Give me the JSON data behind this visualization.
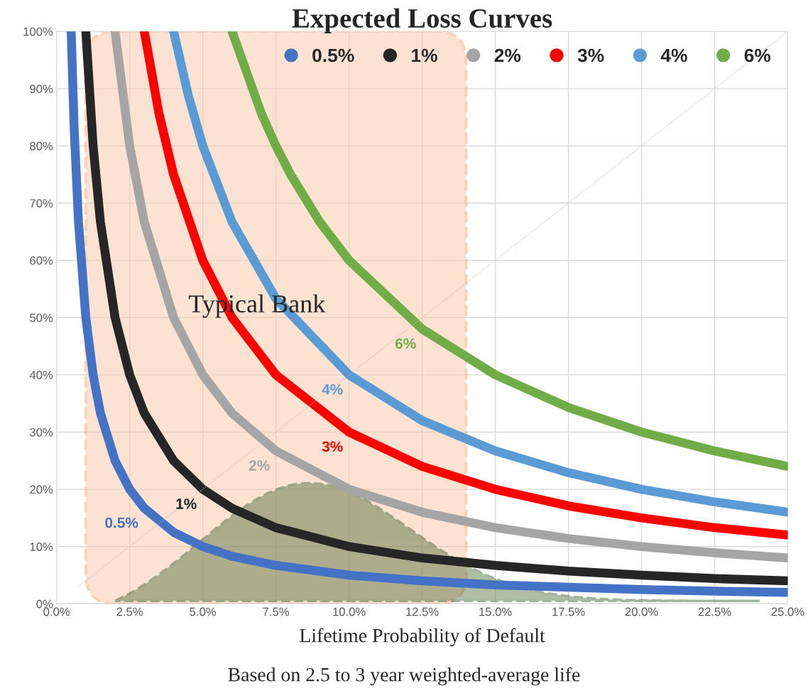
{
  "chart_data": {
    "type": "line",
    "title": "Expected Loss Curves",
    "xlabel": "Lifetime Probability of Default",
    "series": [
      {
        "name": "0.5%",
        "color": "#4472c4",
        "x": [
          0.5,
          0.6,
          0.75,
          1,
          1.25,
          1.5,
          2,
          2.5,
          3,
          4,
          5,
          6,
          7.5,
          10,
          12.5,
          15,
          17.5,
          20,
          22.5,
          25
        ],
        "values": [
          100,
          83.3,
          66.7,
          50,
          40,
          33.3,
          25,
          20,
          16.7,
          12.5,
          10,
          8.3,
          6.7,
          5,
          4,
          3.3,
          2.9,
          2.5,
          2.2,
          2
        ]
      },
      {
        "name": "1%",
        "color": "#262626",
        "x": [
          1,
          1.25,
          1.5,
          2,
          2.5,
          3,
          4,
          5,
          6,
          7.5,
          10,
          12.5,
          15,
          17.5,
          20,
          22.5,
          25
        ],
        "values": [
          100,
          80,
          66.7,
          50,
          40,
          33.3,
          25,
          20,
          16.7,
          13.3,
          10,
          8,
          6.7,
          5.7,
          5,
          4.4,
          4
        ]
      },
      {
        "name": "2%",
        "color": "#a5a5a5",
        "x": [
          2,
          2.5,
          3,
          4,
          5,
          6,
          7.5,
          10,
          12.5,
          15,
          17.5,
          20,
          22.5,
          25
        ],
        "values": [
          100,
          80,
          66.7,
          50,
          40,
          33.3,
          26.7,
          20,
          16,
          13.3,
          11.4,
          10,
          8.9,
          8
        ]
      },
      {
        "name": "3%",
        "color": "#ff0000",
        "x": [
          3,
          3.5,
          4,
          5,
          6,
          7.5,
          10,
          12.5,
          15,
          17.5,
          20,
          22.5,
          25
        ],
        "values": [
          100,
          85.7,
          75,
          60,
          50,
          40,
          30,
          24,
          20,
          17.1,
          15,
          13.3,
          12
        ]
      },
      {
        "name": "4%",
        "color": "#5b9bd5",
        "x": [
          4,
          4.5,
          5,
          6,
          7.5,
          10,
          12.5,
          15,
          17.5,
          20,
          22.5,
          25
        ],
        "values": [
          100,
          88.9,
          80,
          66.7,
          53.3,
          40,
          32,
          26.7,
          22.9,
          20,
          17.8,
          16
        ]
      },
      {
        "name": "6%",
        "color": "#70ad47",
        "x": [
          6,
          7,
          7.5,
          8,
          9,
          10,
          12.5,
          15,
          17.5,
          20,
          22.5,
          25
        ],
        "values": [
          100,
          85.7,
          80,
          75,
          66.7,
          60,
          48,
          40,
          34.3,
          30,
          26.7,
          24
        ]
      },
      {
        "color": "#bfbfbf",
        "line_style": "dotted",
        "x": [
          0.75,
          25
        ],
        "values": [
          3,
          100
        ]
      }
    ],
    "annotations": [
      {
        "text": "0.5%",
        "x": 3,
        "y": 16.7
      },
      {
        "text": "1%",
        "x": 5,
        "y": 20
      },
      {
        "text": "2%",
        "x": 7.5,
        "y": 26.7
      },
      {
        "text": "3%",
        "x": 10,
        "y": 30
      },
      {
        "text": "4%",
        "x": 10,
        "y": 40
      },
      {
        "text": "6%",
        "x": 12.5,
        "y": 48
      },
      "Based on 2.5 to 3 year weighted-average life"
    ],
    "bands": [
      {
        "axis": "x",
        "from": 1,
        "to": 14,
        "label": "Typical Bank",
        "color": "#f8cbad"
      }
    ],
    "xlim": [
      0,
      25
    ],
    "ylim": [
      0,
      100
    ],
    "xticks": [
      {
        "value": 0,
        "label": "0.0%"
      },
      {
        "value": 2.5,
        "label": "2.5%"
      },
      {
        "value": 5,
        "label": "5.0%"
      },
      {
        "value": 7.5,
        "label": "7.5%"
      },
      {
        "value": 10,
        "label": "10.0%"
      },
      {
        "value": 12.5,
        "label": "12.5%"
      },
      {
        "value": 15,
        "label": "15.0%"
      },
      {
        "value": 17.5,
        "label": "17.5%"
      },
      {
        "value": 20,
        "label": "20.0%"
      },
      {
        "value": 22.5,
        "label": "22.5%"
      },
      {
        "value": 25,
        "label": "25.0%"
      }
    ],
    "yticks": [
      {
        "value": 0,
        "label": "0%"
      },
      {
        "value": 10,
        "label": "10%"
      },
      {
        "value": 20,
        "label": "20%"
      },
      {
        "value": 30,
        "label": "30%"
      },
      {
        "value": 40,
        "label": "40%"
      },
      {
        "value": 50,
        "label": "50%"
      },
      {
        "value": 60,
        "label": "60%"
      },
      {
        "value": 70,
        "label": "70%"
      },
      {
        "value": 80,
        "label": "80%"
      },
      {
        "value": 90,
        "label": "90%"
      },
      {
        "value": 100,
        "label": "100%"
      }
    ],
    "grid": true,
    "legend": "top right",
    "marker": "none",
    "line_style": "solid"
  }
}
